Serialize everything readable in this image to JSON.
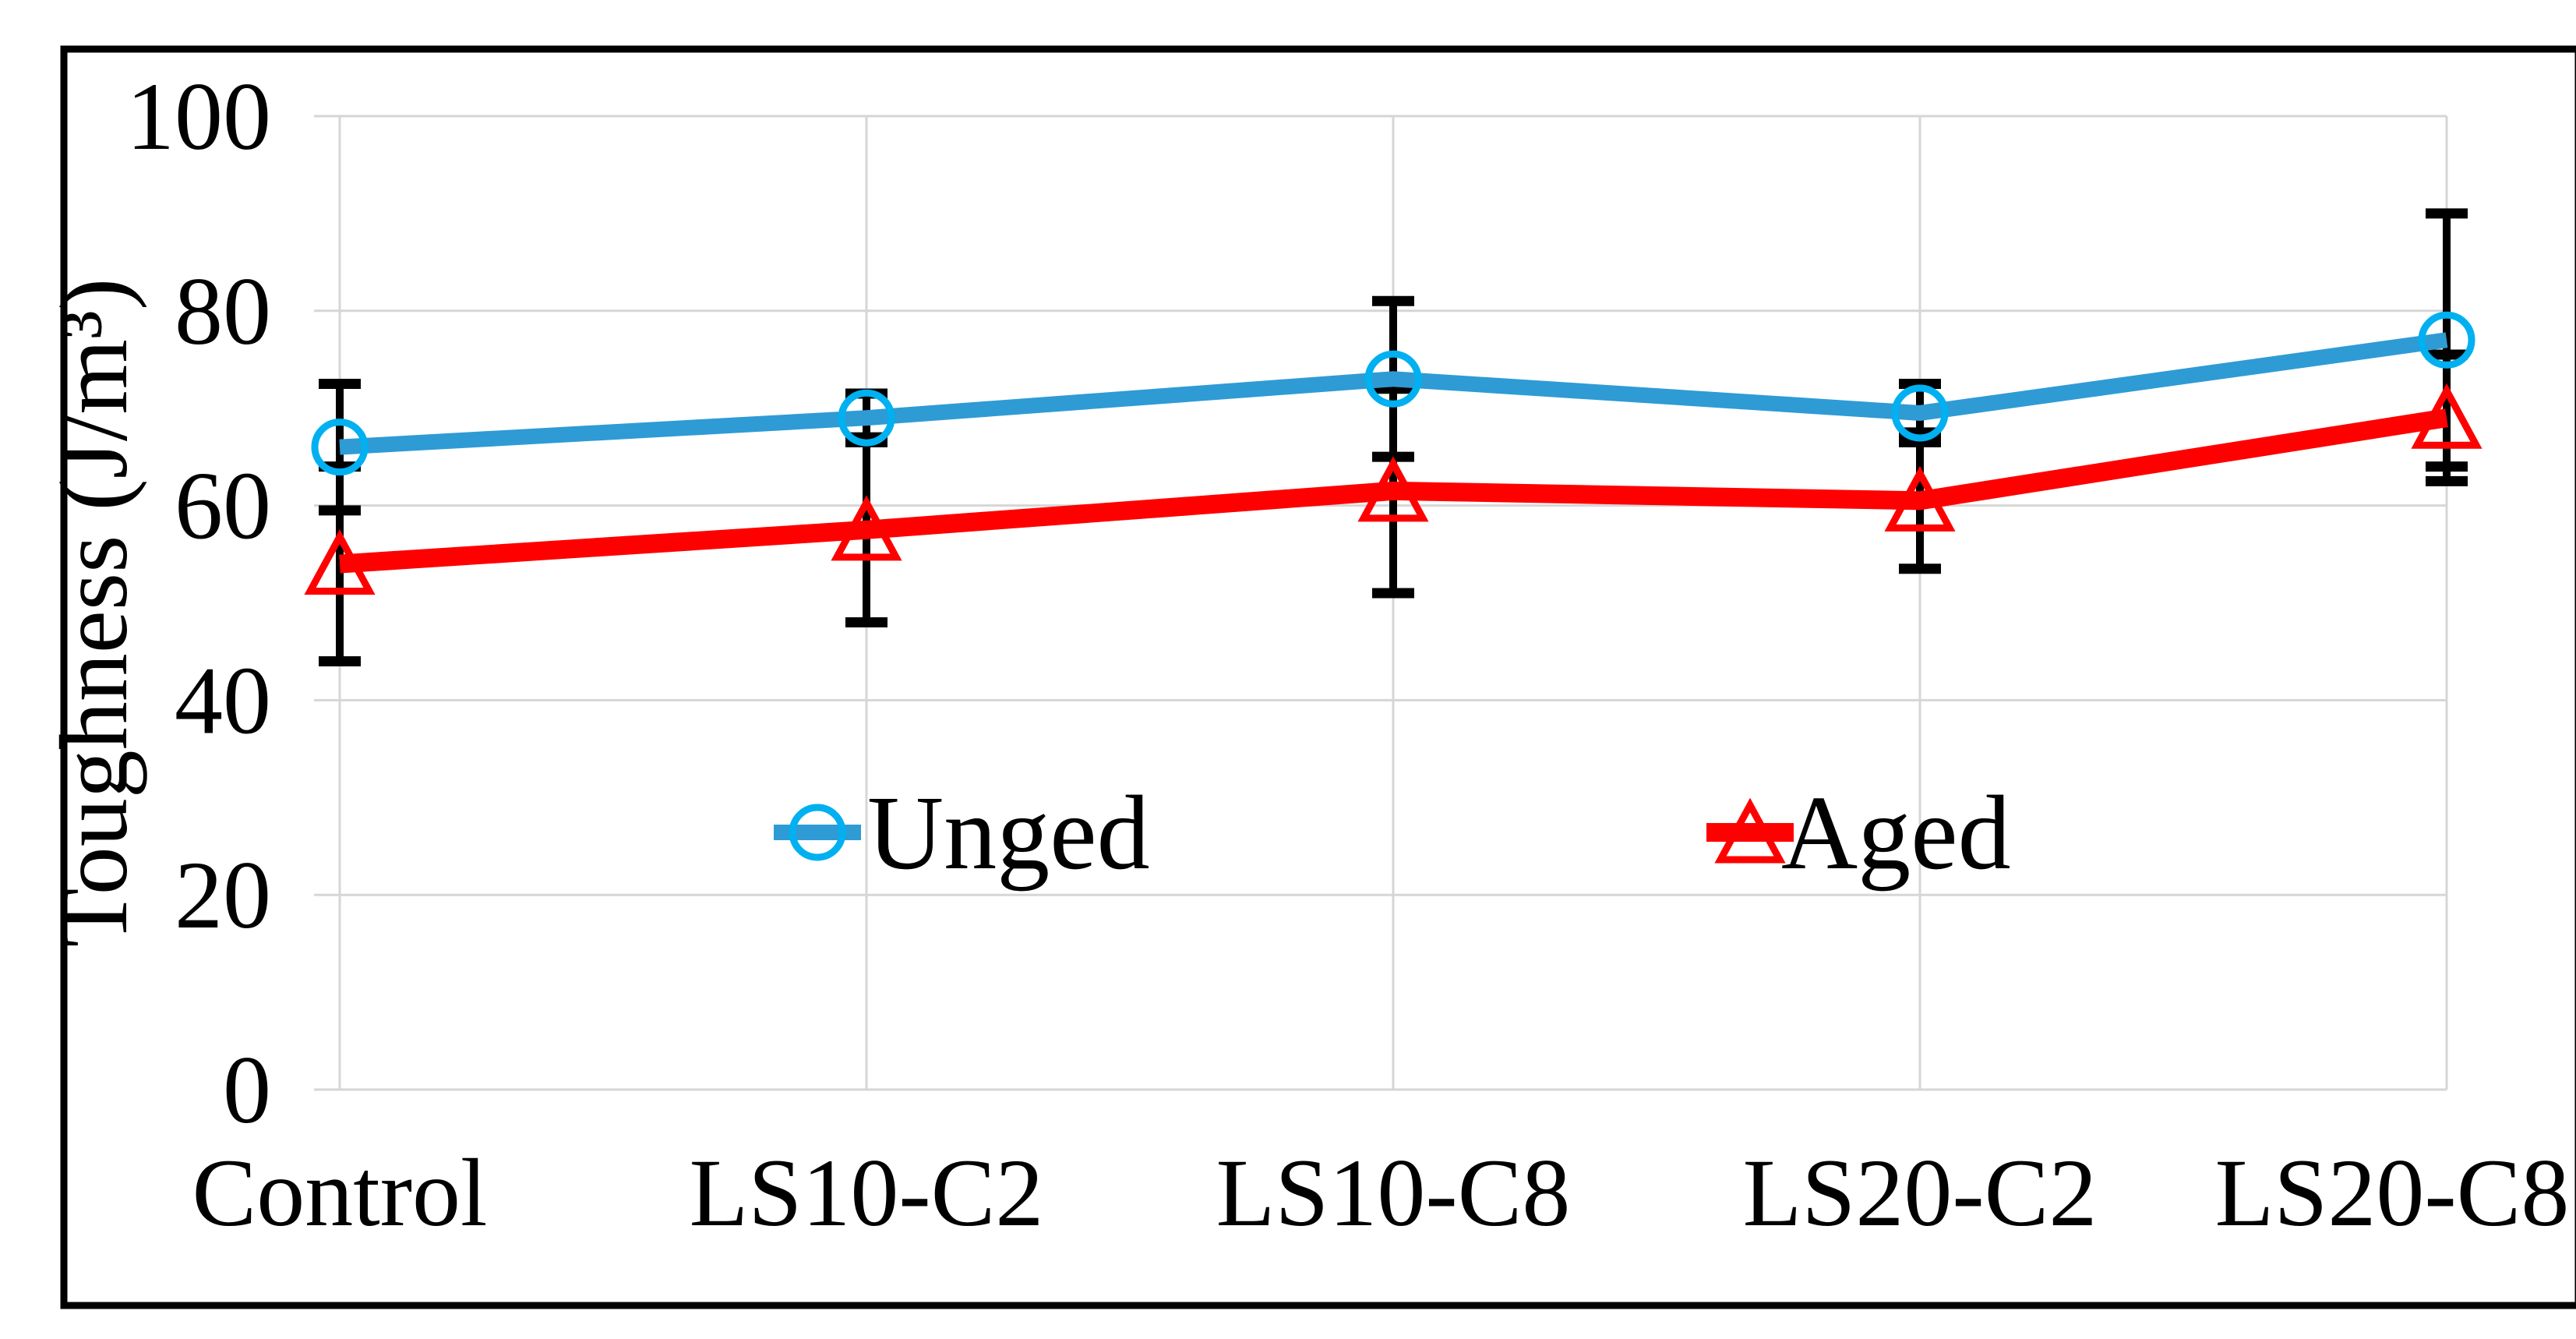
{
  "figure": {
    "border_color": "#000000",
    "background": "#ffffff"
  },
  "chart_data": {
    "type": "line",
    "title": "",
    "xlabel": "",
    "ylabel": "Toughness (J/m³)",
    "categories": [
      "Control",
      "LS10-C2",
      "LS10-C8",
      "LS20-C2",
      "LS20-C8"
    ],
    "series": [
      {
        "name": "Unged",
        "line_color": "#2E9BD5",
        "marker": "circle",
        "marker_color": "#00B0F0",
        "line_width": 20,
        "values": [
          66,
          69,
          73,
          69.5,
          77
        ],
        "error": [
          6.5,
          2.5,
          8,
          3,
          13
        ]
      },
      {
        "name": "Aged",
        "line_color": "#FE0000",
        "marker": "triangle",
        "marker_color": "#FE0000",
        "line_width": 24,
        "values": [
          54,
          57.5,
          61.5,
          60.5,
          69
        ],
        "error": [
          10,
          9.5,
          10.5,
          7,
          6.5
        ]
      }
    ],
    "ylim": [
      0,
      100
    ],
    "yticks": [
      0,
      20,
      40,
      60,
      80,
      100
    ],
    "grid": true,
    "gridline_color": "#D6D6D6",
    "error_bar_color": "#000000",
    "legend_position": "inside-center",
    "legend_labels": [
      "Unged",
      "Aged"
    ]
  }
}
